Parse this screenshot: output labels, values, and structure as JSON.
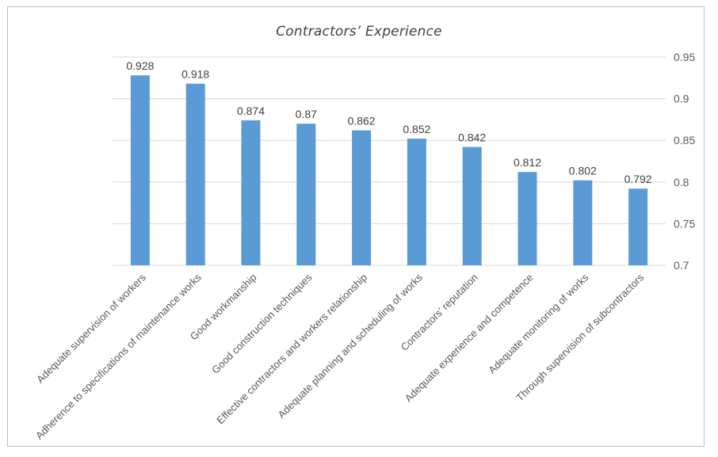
{
  "chart_data": {
    "type": "bar",
    "title": "Contractors’ Experience",
    "categories": [
      "Adequate supervision of workers",
      "Adherence to specifications of maintenance works",
      "Good workmanship",
      "Good construction techniques",
      "Effective contractors and workers relationship",
      "Adequate planning and scheduling of works",
      "Contractors’ reputation",
      "Adequate experience and competence",
      "Adequate monitoring of works",
      "Through supervision of subcontractors"
    ],
    "values": [
      0.928,
      0.918,
      0.874,
      0.87,
      0.862,
      0.852,
      0.842,
      0.812,
      0.802,
      0.792
    ],
    "value_labels": [
      "0.928",
      "0.918",
      "0.874",
      "0.87",
      "0.862",
      "0.852",
      "0.842",
      "0.812",
      "0.802",
      "0.792"
    ],
    "ylim": [
      0.7,
      0.95
    ],
    "yticks": [
      "0.7",
      "0.75",
      "0.8",
      "0.85",
      "0.9",
      "0.95"
    ],
    "y_axis_side": "right",
    "grid": true,
    "bar_color": "#5b9bd5",
    "grid_color": "#d9d9d9"
  }
}
